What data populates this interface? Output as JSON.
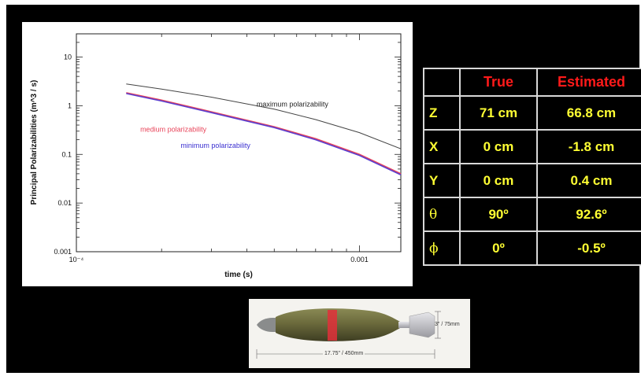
{
  "chart_data": {
    "type": "line",
    "title": "",
    "xlabel": "time (s)",
    "ylabel": "Principal Polarizabilities  (m^3 / s)",
    "xscale": "log",
    "yscale": "log",
    "xlim": [
      0.0001,
      0.0014
    ],
    "ylim": [
      0.001,
      30
    ],
    "x_ticks": [
      {
        "value": 0.0001,
        "label": "10⁻⁴"
      },
      {
        "value": 0.001,
        "label": "0.001"
      }
    ],
    "y_ticks": [
      {
        "value": 10,
        "label": "10"
      },
      {
        "value": 1,
        "label": "1"
      },
      {
        "value": 0.1,
        "label": "0.1"
      },
      {
        "value": 0.01,
        "label": "0.01"
      },
      {
        "value": 0.001,
        "label": "0.001"
      }
    ],
    "grid": false,
    "series": [
      {
        "name": "maximum polarizability",
        "color": "#444444",
        "x": [
          0.00015,
          0.0002,
          0.0003,
          0.0005,
          0.0007,
          0.001,
          0.0014
        ],
        "y": [
          2.8,
          2.2,
          1.5,
          0.85,
          0.52,
          0.28,
          0.13
        ]
      },
      {
        "name": "medium polarizability",
        "color": "#e8445a",
        "x": [
          0.00015,
          0.0002,
          0.0003,
          0.0005,
          0.0007,
          0.001,
          0.0014
        ],
        "y": [
          1.85,
          1.3,
          0.75,
          0.37,
          0.21,
          0.1,
          0.04
        ]
      },
      {
        "name": "minimum polarizability",
        "color": "#5a3fd0",
        "x": [
          0.00015,
          0.0002,
          0.0003,
          0.0005,
          0.0007,
          0.001,
          0.0014
        ],
        "y": [
          1.78,
          1.25,
          0.72,
          0.355,
          0.2,
          0.095,
          0.038
        ]
      }
    ],
    "annotations": [
      {
        "text": "maximum polarizability",
        "x": 0.00058,
        "y": 0.96,
        "color": "#222222"
      },
      {
        "text": "medium polarizability",
        "x": 0.00022,
        "y": 0.29,
        "color": "#e8445a"
      },
      {
        "text": "minimum polarizability",
        "x": 0.00031,
        "y": 0.135,
        "color": "#3a2fd0"
      }
    ]
  },
  "table": {
    "header_true": "True",
    "header_estimated": "Estimated",
    "rows": [
      {
        "symbol": "Z",
        "true": "71 cm",
        "estimated": "66.8 cm"
      },
      {
        "symbol": "X",
        "true": "0 cm",
        "estimated": "-1.8 cm"
      },
      {
        "symbol": "Y",
        "true": "0 cm",
        "estimated": "0.4 cm"
      },
      {
        "symbol": "θ",
        "true": "90º",
        "estimated": "92.6º"
      },
      {
        "symbol": "ϕ",
        "true": "0º",
        "estimated": "-0.5º"
      }
    ]
  },
  "photo": {
    "diameter_label": "3\" / 75mm",
    "length_label": "17.75\" / 450mm",
    "colors": {
      "body": "#6b6a3c",
      "band": "#e0303a",
      "tail": "#c8c8cc"
    }
  }
}
